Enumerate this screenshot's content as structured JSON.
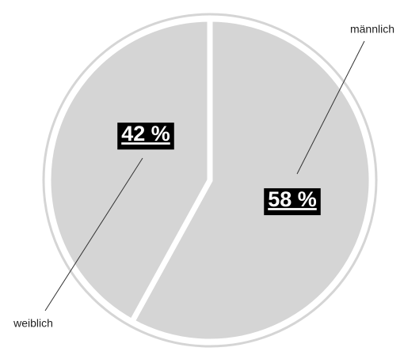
{
  "chart_data": {
    "type": "pie",
    "categories": [
      "männlich",
      "weiblich"
    ],
    "values": [
      58,
      42
    ],
    "value_labels": [
      "58 %",
      "42 %"
    ],
    "colors": [
      "#d5d5d5",
      "#d5d5d5"
    ]
  }
}
